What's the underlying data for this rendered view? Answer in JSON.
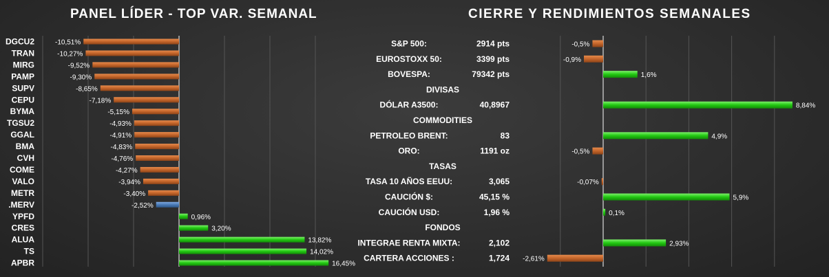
{
  "left_panel": {
    "title": "PANEL LÍDER - TOP VAR. SEMANAL"
  },
  "right_panel": {
    "title": "CIERRE Y RENDIMIENTOS SEMANALES"
  },
  "colors": {
    "negative": "#c8672b",
    "positive": "#2ecc1f",
    "index": "#4a7bb7",
    "grid": "#555555",
    "axis": "#dddddd"
  },
  "chart_data": [
    {
      "type": "bar",
      "orientation": "horizontal",
      "title": "PANEL LÍDER - TOP VAR. SEMANAL",
      "categories": [
        "DGCU2",
        "TRAN",
        "MIRG",
        "PAMP",
        "SUPV",
        "CEPU",
        "BYMA",
        "TGSU2",
        "GGAL",
        "BMA",
        "CVH",
        "COME",
        "VALO",
        "METR",
        ".MERV",
        "YPFD",
        "CRES",
        "ALUA",
        "TS",
        "APBR"
      ],
      "values": [
        -10.51,
        -10.27,
        -9.52,
        -9.3,
        -8.65,
        -7.18,
        -5.15,
        -4.93,
        -4.91,
        -4.83,
        -4.76,
        -4.27,
        -3.94,
        -3.4,
        -2.52,
        0.96,
        3.2,
        13.82,
        14.02,
        16.45
      ],
      "value_labels": [
        "-10,51%",
        "-10,27%",
        "-9,52%",
        "-9,30%",
        "-8,65%",
        "-7,18%",
        "-5,15%",
        "-4,93%",
        "-4,91%",
        "-4,83%",
        "-4,76%",
        "-4,27%",
        "-3,94%",
        "-3,40%",
        "-2,52%",
        "0,96%",
        "3,20%",
        "13,82%",
        "14,02%",
        "16,45%"
      ],
      "grid": true
    },
    {
      "type": "bar",
      "orientation": "horizontal",
      "title": "CIERRE Y RENDIMIENTOS SEMANALES",
      "rows": [
        {
          "kind": "item",
          "label": "S&P 500:",
          "close": "2914 pts",
          "value": -0.5,
          "value_label": "-0,5%"
        },
        {
          "kind": "item",
          "label": "EUROSTOXX 50:",
          "close": "3399 pts",
          "value": -0.9,
          "value_label": "-0,9%"
        },
        {
          "kind": "item",
          "label": "BOVESPA:",
          "close": "79342 pts",
          "value": 1.6,
          "value_label": "1,6%"
        },
        {
          "kind": "header",
          "label": "DIVISAS"
        },
        {
          "kind": "item",
          "label": "DÓLAR A3500:",
          "close": "40,8967",
          "value": 8.84,
          "value_label": "8,84%"
        },
        {
          "kind": "header",
          "label": "COMMODITIES"
        },
        {
          "kind": "item",
          "label": "PETROLEO BRENT:",
          "close": "83",
          "value": 4.9,
          "value_label": "4,9%"
        },
        {
          "kind": "item",
          "label": "ORO:",
          "close": "1191 oz",
          "value": -0.5,
          "value_label": "-0,5%"
        },
        {
          "kind": "header",
          "label": "TASAS"
        },
        {
          "kind": "item",
          "label": "TASA 10 AÑOS EEUU:",
          "close": "3,065",
          "value": -0.07,
          "value_label": "-0,07%"
        },
        {
          "kind": "item",
          "label": "CAUCIÓN $:",
          "close": "45,15 %",
          "value": 5.9,
          "value_label": "5,9%"
        },
        {
          "kind": "item",
          "label": "CAUCIÓN USD:",
          "close": "1,96 %",
          "value": 0.1,
          "value_label": "0,1%"
        },
        {
          "kind": "header",
          "label": "FONDOS"
        },
        {
          "kind": "item",
          "label": "INTEGRAE RENTA MIXTA:",
          "close": "2,102",
          "value": 2.93,
          "value_label": "2,93%"
        },
        {
          "kind": "item",
          "label": "CARTERA ACCIONES :",
          "close": "1,724",
          "value": -2.61,
          "value_label": "-2,61%"
        }
      ],
      "grid": true
    }
  ]
}
